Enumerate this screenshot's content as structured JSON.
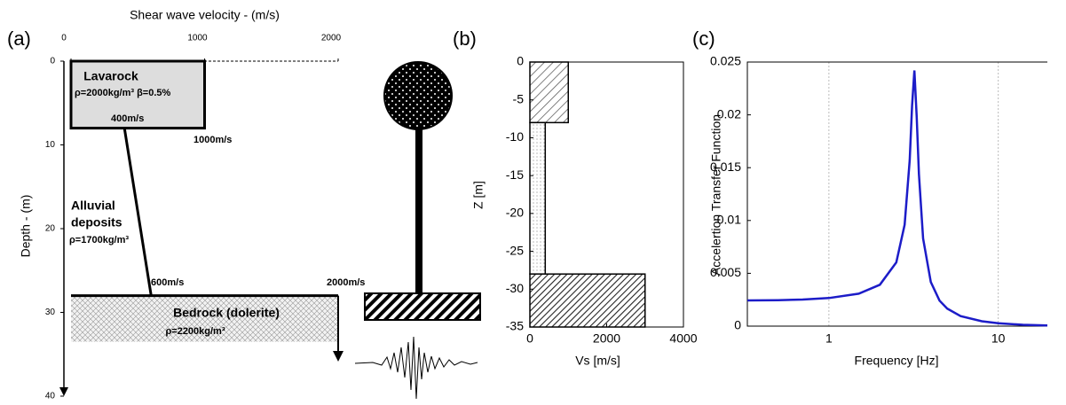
{
  "chart_data": [
    {
      "type": "profile",
      "panel_label": "(a)",
      "xlabel": "Shear wave velocity - (m/s)",
      "ylabel": "Depth - (m)",
      "xlim": [
        0,
        2000
      ],
      "xticks": [
        0,
        1000,
        2000
      ],
      "ylim": [
        0,
        40
      ],
      "yticks": [
        0,
        10,
        20,
        30,
        40
      ],
      "lavarock": {
        "vs": 1000,
        "top": 0,
        "bottom": 8
      },
      "alluvial": {
        "vs_top": 400,
        "vs_bottom": 600,
        "top": 8,
        "bottom": 28
      },
      "bedrock": {
        "vs": 2000,
        "top": 28,
        "bottom": 33.5
      },
      "annotations": [
        "Lavarock",
        "ρ=2000kg/m³ β=0.5%",
        "400m/s",
        "1000m/s",
        "Alluvial",
        "deposits",
        "ρ=1700kg/m³",
        "600m/s",
        "2000m/s",
        "Bedrock (dolerite)",
        "ρ=2200kg/m³"
      ]
    },
    {
      "type": "step",
      "panel_label": "(b)",
      "xlabel": "Vs [m/s]",
      "ylabel": "Z [m]",
      "xlim": [
        0,
        4000
      ],
      "xticks": [
        0,
        2000,
        4000
      ],
      "ylim": [
        -35,
        0
      ],
      "yticks": [
        0,
        -5,
        -10,
        -15,
        -20,
        -25,
        -30,
        -35
      ],
      "layers": [
        {
          "top": 0,
          "bottom": -8,
          "vs": 1000
        },
        {
          "top": -8,
          "bottom": -28,
          "vs": 400
        },
        {
          "top": -28,
          "bottom": -35,
          "vs": 3000
        }
      ]
    },
    {
      "type": "line",
      "panel_label": "(c)",
      "xlabel": "Frequency [Hz]",
      "ylabel": "Accelertion Transfer Function",
      "log_x": true,
      "grid": true,
      "color": "#1c1cc8",
      "xlim": [
        0.33,
        19.5
      ],
      "xticks": [
        1,
        10
      ],
      "ylim": [
        0,
        0.025
      ],
      "yticks": [
        0,
        0.005,
        0.01,
        0.015,
        0.02,
        0.025
      ],
      "x": [
        0.33,
        0.5,
        0.7,
        1,
        1.5,
        2,
        2.5,
        2.8,
        3.0,
        3.1,
        3.2,
        3.3,
        3.4,
        3.6,
        4,
        4.5,
        5,
        6,
        8,
        10,
        14,
        19.5
      ],
      "values": [
        0.00243,
        0.00246,
        0.00252,
        0.00266,
        0.00307,
        0.00392,
        0.00603,
        0.0096,
        0.0157,
        0.0209,
        0.0242,
        0.0198,
        0.0144,
        0.0083,
        0.00417,
        0.00242,
        0.00166,
        0.00095,
        0.00046,
        0.00027,
        0.00013,
        6.6e-05
      ]
    }
  ]
}
